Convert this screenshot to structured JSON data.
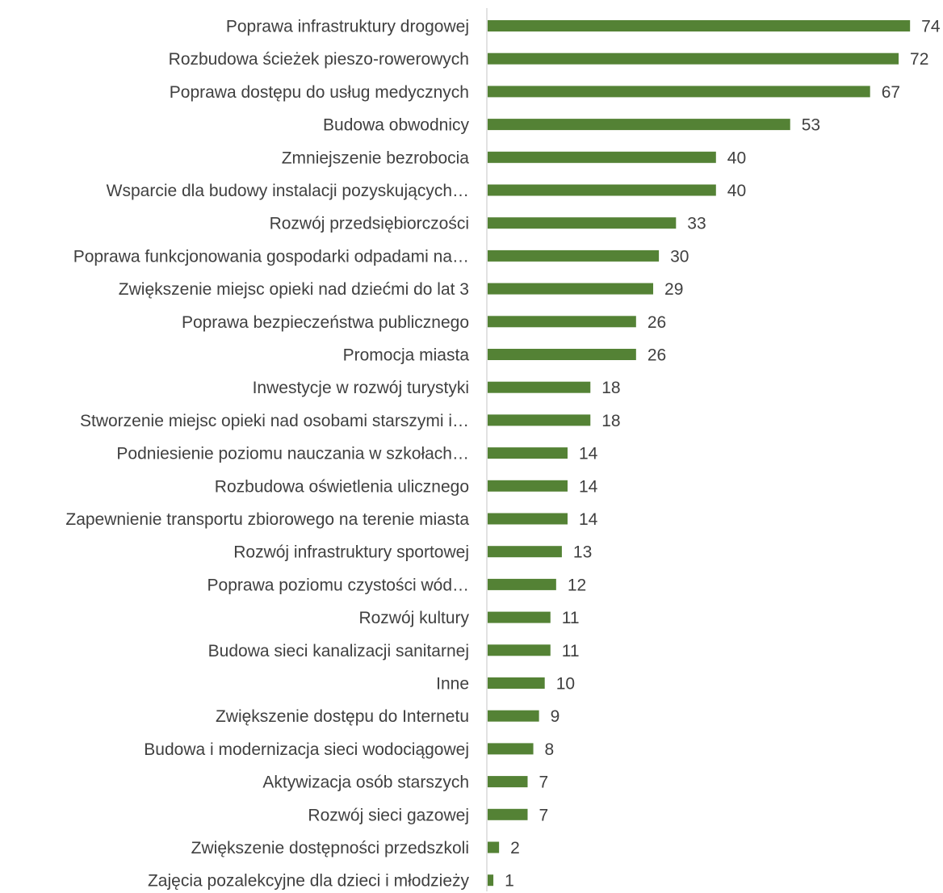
{
  "chart_data": {
    "type": "bar",
    "orientation": "horizontal",
    "title": "",
    "xlabel": "",
    "ylabel": "",
    "xlim": [
      0,
      74
    ],
    "grid": false,
    "legend": "none",
    "bar_color": "#548235",
    "axis_color": "#d9d9d9",
    "text_color": "#404040",
    "categories": [
      "Poprawa infrastruktury drogowej",
      "Rozbudowa ścieżek pieszo-rowerowych",
      "Poprawa dostępu do usług medycznych",
      "Budowa obwodnicy",
      "Zmniejszenie bezrobocia",
      "Wsparcie dla budowy instalacji pozyskujących…",
      "Rozwój przedsiębiorczości",
      "Poprawa funkcjonowania gospodarki odpadami na…",
      "Zwiększenie miejsc opieki nad dziećmi do lat 3",
      "Poprawa bezpieczeństwa publicznego",
      "Promocja miasta",
      "Inwestycje w rozwój turystyki",
      "Stworzenie miejsc opieki nad osobami starszymi i…",
      "Podniesienie poziomu nauczania w szkołach…",
      "Rozbudowa oświetlenia ulicznego",
      "Zapewnienie transportu zbiorowego na terenie miasta",
      "Rozwój infrastruktury sportowej",
      "Poprawa poziomu czystości wód…",
      "Rozwój kultury",
      "Budowa sieci kanalizacji sanitarnej",
      "Inne",
      "Zwiększenie dostępu do Internetu",
      "Budowa i modernizacja sieci wodociągowej",
      "Aktywizacja osób starszych",
      "Rozwój sieci gazowej",
      "Zwiększenie dostępności przedszkoli",
      "Zajęcia pozalekcyjne dla dzieci i młodzieży"
    ],
    "values": [
      74,
      72,
      67,
      53,
      40,
      40,
      33,
      30,
      29,
      26,
      26,
      18,
      18,
      14,
      14,
      14,
      13,
      12,
      11,
      11,
      10,
      9,
      8,
      7,
      7,
      2,
      1
    ]
  }
}
